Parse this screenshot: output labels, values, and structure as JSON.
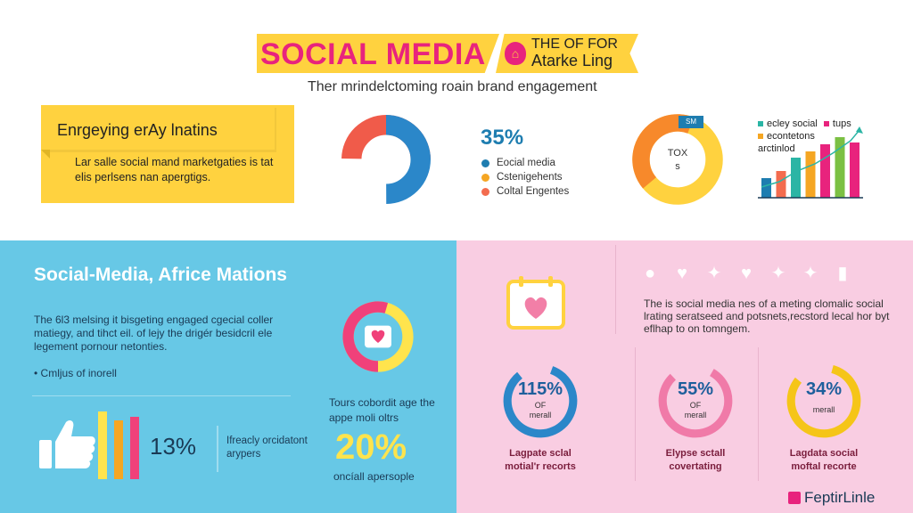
{
  "header": {
    "title": "SOCIAL MEDIA",
    "ribbon_line1": "THE OF FOR",
    "ribbon_line2": "Atarke Ling",
    "subtitle": "Ther mrindelctoming roain brand engagement"
  },
  "top_left": {
    "heading": "Enrgeying erAy lnatins",
    "text": "Lar salle social mand marketgaties is tat elis perlsens nan apergtigs."
  },
  "top_donut": {
    "percent": "35%",
    "legend": [
      {
        "label": "Eocial media",
        "color": "#1e7db0"
      },
      {
        "label": "Cstenigehents",
        "color": "#f5a623"
      },
      {
        "label": "Coltal Engentes",
        "color": "#f36c4f"
      }
    ],
    "colors": {
      "blue": "#2b87c9",
      "red": "#f05b4a",
      "orange": "#f7a24b"
    }
  },
  "ring_chart": {
    "center_line1": "TOX",
    "center_line2": "s",
    "tag": "SM"
  },
  "bar_chart": {
    "legend_line1": "ecley social",
    "legend_line1b": "tups",
    "legend_line2": "econtetons",
    "legend_line3": "arctinlod",
    "values": [
      22,
      30,
      45,
      52,
      60,
      68,
      62
    ],
    "colors": [
      "#1e7db0",
      "#f36c4f",
      "#2bb5a5",
      "#f5a623",
      "#e8237d",
      "#7bc043",
      "#e8237d"
    ]
  },
  "blue_section": {
    "title": "Social-Media, Africe Mations",
    "text": "The 6l3 melsing it bisgeting engaged cgecial coller matiegy, and tihct eil. of lejy the drigér besidcril ele legement pornour netonties.",
    "bullet": "• Cmljus of inorell",
    "side_text": "Tours cobordit age the appe moli oltrs",
    "percent13": "13%",
    "mid_text": "Ifreacly orcidatont arypers",
    "percent20": "20%",
    "percent20_label": "oncíall apersople"
  },
  "pink_section": {
    "text": "The is social media nes of a meting clomalic social lrating seratseed and potsnets,recstord lecal hor byt eflhap to on tomngem.",
    "social_icons": [
      "person-icon",
      "heart-icon",
      "bird-icon",
      "heart-icon",
      "bird-icon",
      "bird-icon",
      "chart-icon"
    ],
    "rings": [
      {
        "percent": "115%",
        "sub1": "OF",
        "sub2": "merall",
        "label1": "Lagpate sclal",
        "label2": "motial'r recorts",
        "color": "#2b87c9"
      },
      {
        "percent": "55%",
        "sub1": "OF",
        "sub2": "merall",
        "label1": "Elypse sctall",
        "label2": "covertating",
        "color": "#f07aa8"
      },
      {
        "percent": "34%",
        "sub1": "",
        "sub2": "merall",
        "label1": "Lagdata social",
        "label2": "moftal recorte",
        "color": "#f5c518"
      }
    ],
    "brand": "FeptirLinle"
  }
}
